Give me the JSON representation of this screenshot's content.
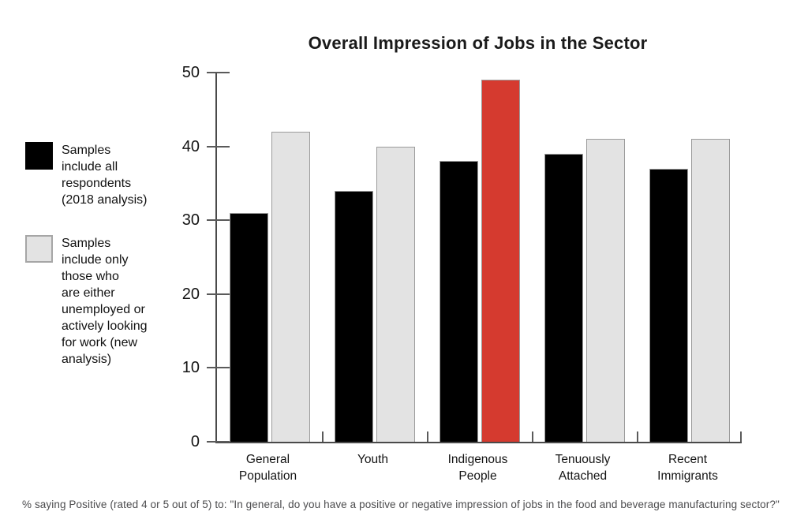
{
  "title": "Overall Impression of Jobs in the Sector",
  "legend": {
    "items": [
      {
        "label": "Samples\ninclude all\nrespondents\n(2018 analysis)",
        "label_flat": "Samples include all respondents (2018 analysis)",
        "swatch_color": "#000000",
        "swatch_border": "#000000"
      },
      {
        "label": "Samples\ninclude only\nthose who\nare either\nunemployed or\nactively looking\nfor work (new\nanalysis)",
        "label_flat": "Samples include only those who are either unemployed or actively looking for work (new analysis)",
        "swatch_color": "#e3e3e3",
        "swatch_border": "#a6a6a6"
      }
    ]
  },
  "chart_data": {
    "type": "bar",
    "title": "Overall Impression of Jobs in the Sector",
    "categories": [
      "General Population",
      "Youth",
      "Indigenous People",
      "Tenuously Attached",
      "Recent Immigrants"
    ],
    "category_labels": [
      "General\nPopulation",
      "Youth",
      "Indigenous\nPeople",
      "Tenuously\nAttached",
      "Recent\nImmigrants"
    ],
    "series": [
      {
        "name": "Samples include all respondents (2018 analysis)",
        "color": "#000000",
        "values": [
          31,
          34,
          38,
          39,
          37
        ]
      },
      {
        "name": "Samples include only those who are either unemployed or actively looking for work (new analysis)",
        "color": "#e3e3e3",
        "values": [
          42,
          40,
          49,
          41,
          41
        ]
      }
    ],
    "highlight": {
      "category_index": 2,
      "series_index": 1,
      "color": "#d53a2f",
      "category": "Indigenous People"
    },
    "xlabel": "",
    "ylabel": "",
    "ylim": [
      0,
      50
    ],
    "yticks": [
      0,
      10,
      20,
      30,
      40,
      50
    ],
    "grid": false,
    "legend_position": "left"
  },
  "footnote": "% saying Positive (rated 4 or 5 out of 5) to: \"In general, do you have a positive or negative impression of jobs in the food and beverage manufacturing sector?\""
}
